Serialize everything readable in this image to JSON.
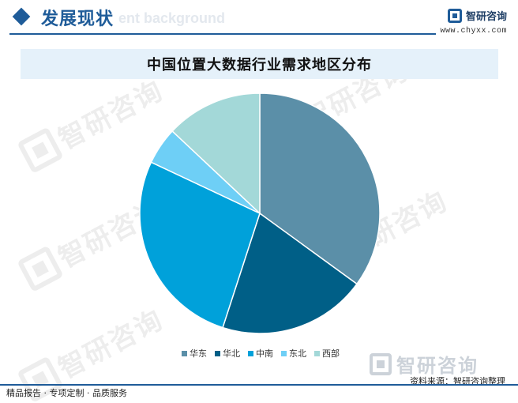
{
  "header": {
    "title": "发展现状",
    "bg_text": "ent background",
    "brand_name": "智研咨询",
    "brand_url": "www.chyxx.com"
  },
  "watermark_text": "智研咨询",
  "chart_data": {
    "type": "pie",
    "title": "中国位置大数据行业需求地区分布",
    "categories": [
      "华东",
      "华北",
      "中南",
      "东北",
      "西部"
    ],
    "values": [
      35,
      20,
      27,
      5,
      13
    ],
    "colors": [
      "#5b8fa8",
      "#005f87",
      "#00a1da",
      "#6ecff6",
      "#a3d8d8"
    ],
    "legend_position": "bottom"
  },
  "footer": {
    "source_logo_text": "智研咨询",
    "source": "资料来源：智研咨询整理",
    "left_text": "精品报告 · 专项定制 · 品质服务"
  }
}
